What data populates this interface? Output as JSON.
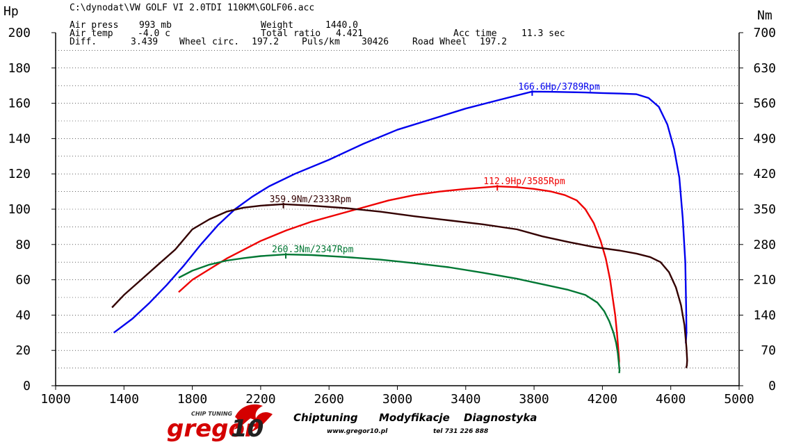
{
  "header": {
    "file_path": "C:\\dynodat\\VW GOLF VI 2.0TDI 110KM\\GOLF06.acc",
    "rows": [
      [
        "Air press",
        "993 mb",
        "Weight",
        "1440.0",
        "",
        ""
      ],
      [
        "Air temp",
        "-4.0 c",
        "Total ratio",
        "4.421",
        "Acc time",
        "11.3 sec"
      ],
      [
        "Diff.",
        "3.439",
        "Wheel circ.",
        "197.2",
        "Puls/km",
        "30426"
      ]
    ],
    "road_wheel_label": "Road Wheel",
    "road_wheel_value": "197.2"
  },
  "chart_data": {
    "type": "line",
    "left_axis_unit": "Hp",
    "right_axis_unit": "Nm",
    "xlim": [
      1000,
      5000
    ],
    "x_ticks": [
      1000,
      1400,
      1800,
      2200,
      2600,
      3000,
      3400,
      3800,
      4200,
      4600,
      5000
    ],
    "ylim_hp": [
      0,
      200
    ],
    "hp_ticks": [
      0,
      20,
      40,
      60,
      80,
      100,
      120,
      140,
      160,
      180,
      200
    ],
    "ylim_nm": [
      0,
      700
    ],
    "nm_ticks": [
      0,
      70,
      140,
      210,
      280,
      350,
      420,
      490,
      560,
      630,
      700
    ],
    "grid": true,
    "series": [
      {
        "axis": "hp",
        "color": "#0000ee",
        "annotation": "166.6Hp/3789Rpm",
        "peak": [
          3789,
          166.6
        ],
        "x": [
          1340,
          1450,
          1550,
          1650,
          1750,
          1850,
          1950,
          2050,
          2150,
          2250,
          2400,
          2600,
          2800,
          3000,
          3200,
          3400,
          3600,
          3789,
          3900,
          4000,
          4100,
          4200,
          4300,
          4400,
          4470,
          4530,
          4580,
          4620,
          4650,
          4670,
          4685,
          4690,
          4692,
          4688
        ],
        "y": [
          30,
          38,
          47,
          57,
          68,
          80,
          91,
          100,
          107,
          113,
          120,
          128,
          137,
          145,
          151,
          157,
          162,
          166.6,
          166.5,
          166.3,
          166.1,
          165.8,
          165.5,
          165.1,
          163,
          158,
          148,
          134,
          118,
          95,
          70,
          45,
          30,
          24
        ]
      },
      {
        "axis": "hp",
        "color": "#ee0000",
        "annotation": "112.9Hp/3585Rpm",
        "peak": [
          3585,
          112.9
        ],
        "x": [
          1720,
          1800,
          1900,
          2000,
          2100,
          2200,
          2350,
          2500,
          2650,
          2800,
          2950,
          3100,
          3250,
          3400,
          3585,
          3700,
          3800,
          3900,
          3980,
          4050,
          4100,
          4150,
          4190,
          4220,
          4245,
          4260,
          4275,
          4285,
          4292,
          4296,
          4298,
          4296
        ],
        "y": [
          53,
          60,
          66,
          72,
          77,
          82,
          88,
          93,
          97,
          101,
          105,
          108,
          110,
          111.5,
          112.9,
          112.5,
          111.5,
          110,
          108,
          105,
          100,
          92,
          82,
          72,
          60,
          50,
          40,
          30,
          22,
          17,
          14,
          12
        ]
      },
      {
        "axis": "nm",
        "color": "#330000",
        "annotation": "359.9Nm/2333Rpm",
        "peak": [
          2333,
          359.9
        ],
        "x": [
          1330,
          1400,
          1500,
          1600,
          1700,
          1800,
          1900,
          2000,
          2100,
          2200,
          2333,
          2500,
          2700,
          2900,
          3100,
          3300,
          3500,
          3700,
          3850,
          4000,
          4150,
          4300,
          4400,
          4480,
          4540,
          4590,
          4630,
          4660,
          4680,
          4692,
          4696,
          4694,
          4690
        ],
        "y": [
          155,
          180,
          210,
          240,
          270,
          310,
          330,
          345,
          353,
          357,
          359.9,
          357,
          352,
          345,
          336,
          328,
          320,
          310,
          296,
          285,
          275,
          268,
          262,
          255,
          245,
          225,
          195,
          160,
          120,
          75,
          50,
          40,
          35
        ]
      },
      {
        "axis": "nm",
        "color": "#007733",
        "annotation": "260.3Nm/2347Rpm",
        "peak": [
          2347,
          260.3
        ],
        "x": [
          1720,
          1800,
          1900,
          2000,
          2100,
          2200,
          2347,
          2500,
          2700,
          2900,
          3100,
          3300,
          3500,
          3700,
          3850,
          4000,
          4100,
          4170,
          4210,
          4240,
          4265,
          4280,
          4290,
          4296,
          4300,
          4298
        ],
        "y": [
          214,
          228,
          240,
          248,
          253,
          257,
          260.3,
          259,
          255,
          250,
          243,
          235,
          224,
          212,
          201,
          190,
          180,
          165,
          148,
          128,
          105,
          85,
          65,
          45,
          30,
          25
        ]
      }
    ]
  },
  "footer": {
    "logo_word": "gregor",
    "logo_number": "10",
    "logo_tag": "CHIP TUNING",
    "tagline_1": "Chiptuning",
    "tagline_2": "Modyfikacje",
    "tagline_3": "Diagnostyka",
    "website": "www.gregor10.pl",
    "phone": "tel 731 226 888",
    "logo_colors": {
      "red": "#d40000",
      "dark": "#222222"
    }
  }
}
